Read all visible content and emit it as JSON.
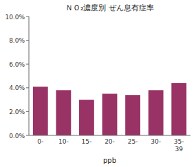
{
  "chart_data": {
    "type": "bar",
    "title": "ＮＯ₂濃度別 ぜん息有症率",
    "xlabel": "ppb",
    "categories": [
      "0-",
      "10-",
      "15-",
      "20-",
      "25-",
      "30-",
      "35-\n39"
    ],
    "values": [
      0.041,
      0.038,
      0.03,
      0.035,
      0.034,
      0.038,
      0.044
    ],
    "color": "#993366",
    "ylim": [
      0,
      0.1
    ],
    "yticks": [
      {
        "value": 0.0,
        "label": "0.0%"
      },
      {
        "value": 0.02,
        "label": "2.0%"
      },
      {
        "value": 0.04,
        "label": "4.0%"
      },
      {
        "value": 0.06,
        "label": "6.0%"
      },
      {
        "value": 0.08,
        "label": "8.0%"
      },
      {
        "value": 0.1,
        "label": "10.0%"
      }
    ],
    "grid": false
  }
}
